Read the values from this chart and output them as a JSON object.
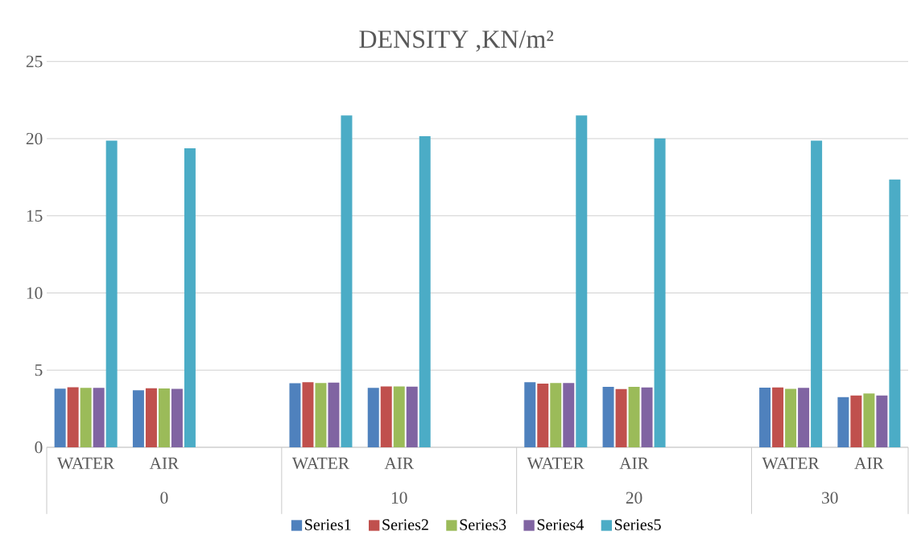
{
  "chart_data": {
    "type": "bar",
    "title": "DENSITY ,KN/m²",
    "categories": [
      "WATER",
      "AIR",
      null,
      "WATER",
      "AIR",
      null,
      "WATER",
      "AIR",
      null,
      "WATER",
      "AIR"
    ],
    "annotations": [
      "0",
      "10",
      "20",
      "30"
    ],
    "series": [
      {
        "name": "Series1",
        "color": "#4f81bd",
        "values": [
          3.8,
          3.69,
          null,
          4.15,
          3.85,
          null,
          4.22,
          3.92,
          null,
          3.87,
          3.25
        ]
      },
      {
        "name": "Series2",
        "color": "#c0504d",
        "values": [
          3.89,
          3.83,
          null,
          4.22,
          3.94,
          null,
          4.13,
          3.77,
          null,
          3.88,
          3.35
        ]
      },
      {
        "name": "Series3",
        "color": "#9bbb59",
        "values": [
          3.85,
          3.81,
          null,
          4.17,
          3.94,
          null,
          4.16,
          3.92,
          null,
          3.79,
          3.49
        ]
      },
      {
        "name": "Series4",
        "color": "#8064a2",
        "values": [
          3.85,
          3.78,
          null,
          4.19,
          3.93,
          null,
          4.16,
          3.88,
          null,
          3.85,
          3.36
        ]
      },
      {
        "name": "Series5",
        "color": "#4bacc6",
        "values": [
          19.87,
          19.38,
          null,
          21.5,
          20.16,
          null,
          21.51,
          20.02,
          null,
          19.87,
          17.35
        ]
      }
    ],
    "ylim": [
      0,
      25
    ],
    "yticks": [
      0,
      5,
      10,
      15,
      20,
      25
    ],
    "grid": "y",
    "legend": "bottom"
  }
}
